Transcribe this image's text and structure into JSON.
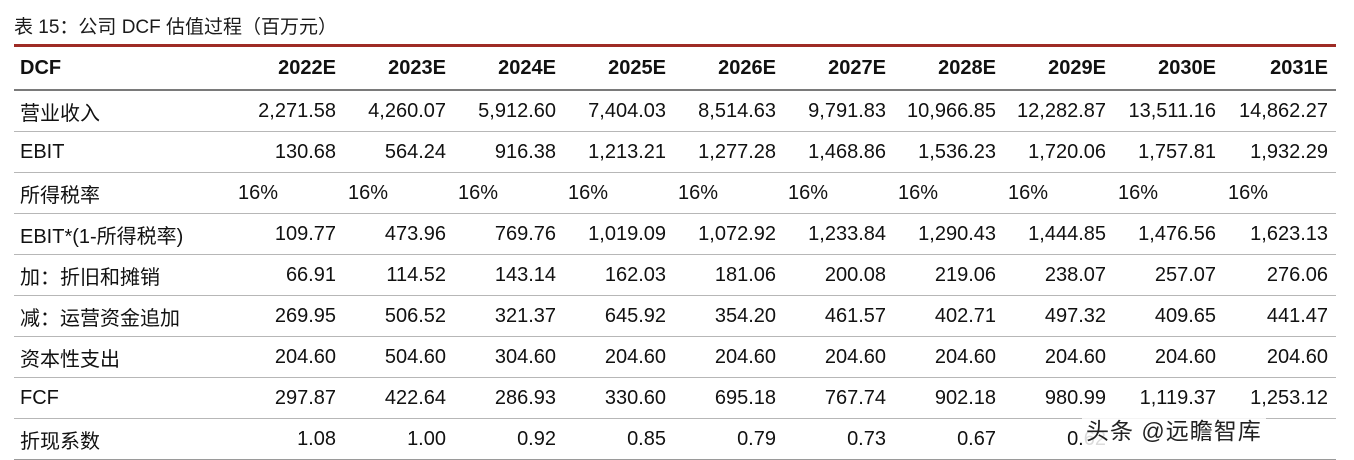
{
  "caption": "表 15：公司 DCF 估值过程（百万元）",
  "table": {
    "header": [
      "DCF",
      "2022E",
      "2023E",
      "2024E",
      "2025E",
      "2026E",
      "2027E",
      "2028E",
      "2029E",
      "2030E",
      "2031E"
    ],
    "rows": [
      {
        "label": "营业收入",
        "values": [
          "2,271.58",
          "4,260.07",
          "5,912.60",
          "7,404.03",
          "8,514.63",
          "9,791.83",
          "10,966.85",
          "12,282.87",
          "13,511.16",
          "14,862.27"
        ]
      },
      {
        "label": "EBIT",
        "values": [
          "130.68",
          "564.24",
          "916.38",
          "1,213.21",
          "1,277.28",
          "1,468.86",
          "1,536.23",
          "1,720.06",
          "1,757.81",
          "1,932.29"
        ]
      },
      {
        "label": "所得税率",
        "values": [
          "16%",
          "16%",
          "16%",
          "16%",
          "16%",
          "16%",
          "16%",
          "16%",
          "16%",
          "16%"
        ]
      },
      {
        "label": "EBIT*(1-所得税率)",
        "values": [
          "109.77",
          "473.96",
          "769.76",
          "1,019.09",
          "1,072.92",
          "1,233.84",
          "1,290.43",
          "1,444.85",
          "1,476.56",
          "1,623.13"
        ]
      },
      {
        "label": "加：折旧和摊销",
        "values": [
          "66.91",
          "114.52",
          "143.14",
          "162.03",
          "181.06",
          "200.08",
          "219.06",
          "238.07",
          "257.07",
          "276.06"
        ]
      },
      {
        "label": "减：运营资金追加",
        "values": [
          "269.95",
          "506.52",
          "321.37",
          "645.92",
          "354.20",
          "461.57",
          "402.71",
          "497.32",
          "409.65",
          "441.47"
        ]
      },
      {
        "label": "资本性支出",
        "values": [
          "204.60",
          "504.60",
          "304.60",
          "204.60",
          "204.60",
          "204.60",
          "204.60",
          "204.60",
          "204.60",
          "204.60"
        ]
      },
      {
        "label": "FCF",
        "values": [
          "297.87",
          "422.64",
          "286.93",
          "330.60",
          "695.18",
          "767.74",
          "902.18",
          "980.99",
          "1,119.37",
          "1,253.12"
        ]
      },
      {
        "label": "折现系数",
        "values": [
          "1.08",
          "1.00",
          "0.92",
          "0.85",
          "0.79",
          "0.73",
          "0.67",
          "0.62",
          "",
          ""
        ]
      }
    ]
  },
  "watermark": "头条 @远瞻智库"
}
